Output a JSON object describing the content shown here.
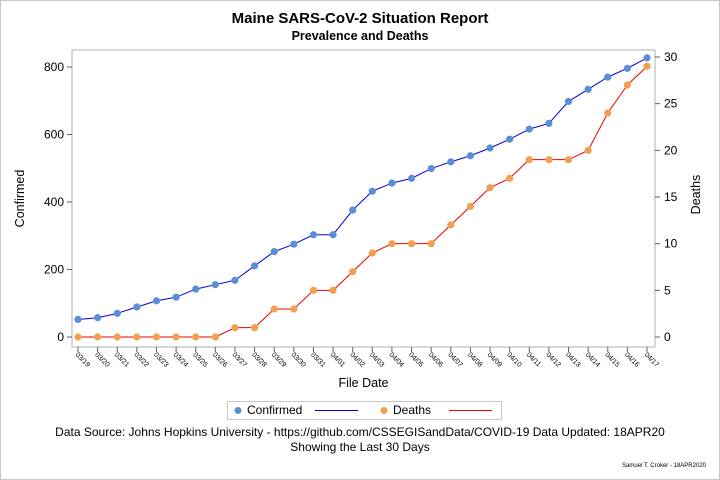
{
  "chart_data": {
    "type": "line",
    "title": "Maine SARS-CoV-2 Situation Report",
    "subtitle": "Prevalence and Deaths",
    "xlabel": "File Date",
    "ylabel": "Confirmed",
    "y2label": "Deaths",
    "categories": [
      "03/19",
      "03/20",
      "03/21",
      "03/22",
      "03/23",
      "03/24",
      "03/25",
      "03/26",
      "03/27",
      "03/28",
      "03/29",
      "03/30",
      "03/31",
      "04/01",
      "04/02",
      "04/03",
      "04/04",
      "04/05",
      "04/06",
      "04/07",
      "04/08",
      "04/09",
      "04/10",
      "04/11",
      "04/12",
      "04/13",
      "04/14",
      "04/15",
      "04/16",
      "04/17"
    ],
    "ylim": [
      0,
      850
    ],
    "yticks": [
      0,
      200,
      400,
      600,
      800
    ],
    "y2lim": [
      0,
      30
    ],
    "y2ticks": [
      0,
      5,
      10,
      15,
      20,
      25,
      30
    ],
    "series": [
      {
        "name": "Confirmed",
        "axis": "left",
        "marker_color": "#5b8fd4",
        "line_color": "#0000dd",
        "values": [
          52,
          57,
          70,
          89,
          107,
          118,
          142,
          155,
          168,
          211,
          253,
          275,
          303,
          303,
          376,
          432,
          456,
          470,
          499,
          519,
          537,
          560,
          586,
          616,
          633,
          698,
          734,
          770,
          796,
          827
        ]
      },
      {
        "name": "Deaths",
        "axis": "right",
        "marker_color": "#f0a050",
        "line_color": "#ee0000",
        "values": [
          0,
          0,
          0,
          0,
          0,
          0,
          0,
          0,
          1,
          1,
          3,
          3,
          5,
          5,
          7,
          9,
          10,
          10,
          10,
          12,
          14,
          16,
          17,
          19,
          19,
          19,
          20,
          24,
          27,
          29
        ]
      }
    ],
    "legend_position": "bottom",
    "grid": false
  },
  "footer": {
    "source": "Data Source: Johns Hopkins University - https://github.com/CSSEGISandData/COVID-19 Data Updated: 18APR20",
    "showing": "Showing the Last 30 Days",
    "credit": "Samuel T. Croker - 18APR2020"
  }
}
